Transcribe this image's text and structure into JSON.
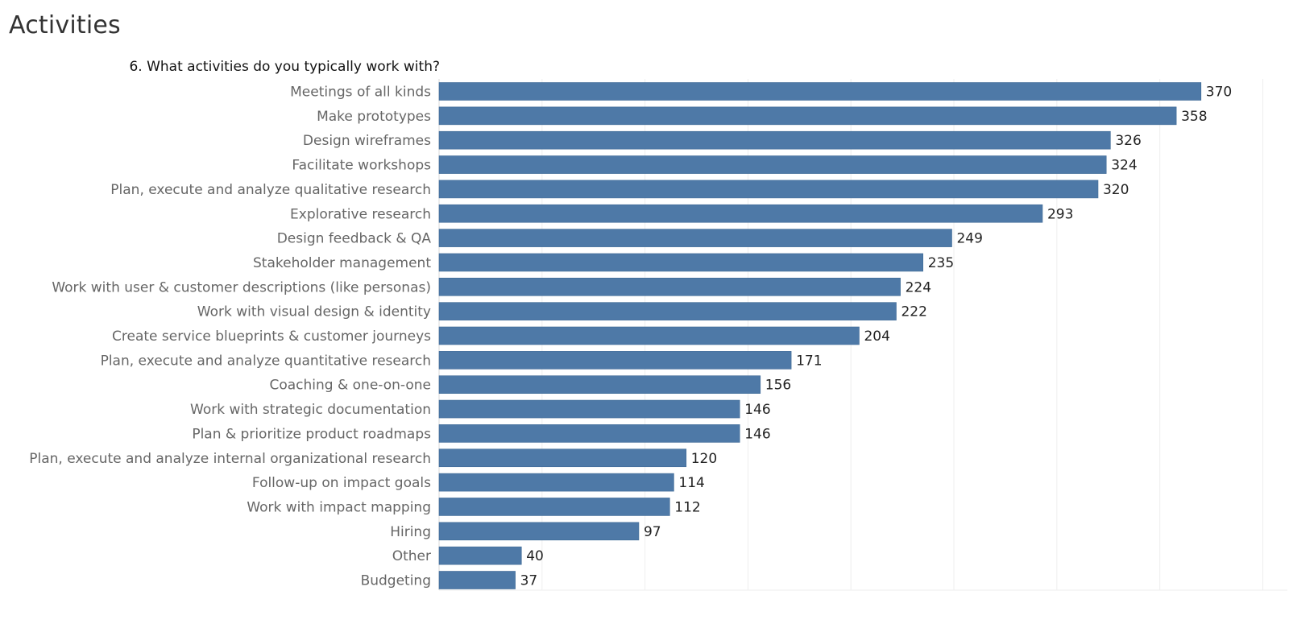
{
  "header": {
    "title": "Activities"
  },
  "chart_data": {
    "type": "bar",
    "orientation": "horizontal",
    "title": "6. What activities do you typically work with?",
    "xlabel": "",
    "ylabel": "",
    "xlim": [
      0,
      400
    ],
    "grid": true,
    "bar_color": "#4e79a7",
    "categories": [
      "Meetings of all kinds",
      "Make prototypes",
      "Design wireframes",
      "Facilitate workshops",
      "Plan, execute and analyze qualitative research",
      "Explorative research",
      "Design feedback & QA",
      "Stakeholder management",
      "Work with user & customer descriptions (like personas)",
      "Work with visual design & identity",
      "Create service blueprints & customer journeys",
      "Plan, execute and analyze quantitative research",
      "Coaching & one-on-one",
      "Work with strategic documentation",
      "Plan & prioritize product roadmaps",
      "Plan, execute and analyze internal organizational research",
      "Follow-up on impact goals",
      "Work with impact mapping",
      "Hiring",
      "Other",
      "Budgeting"
    ],
    "values": [
      370,
      358,
      326,
      324,
      320,
      293,
      249,
      235,
      224,
      222,
      204,
      171,
      156,
      146,
      146,
      120,
      114,
      112,
      97,
      40,
      37
    ]
  }
}
